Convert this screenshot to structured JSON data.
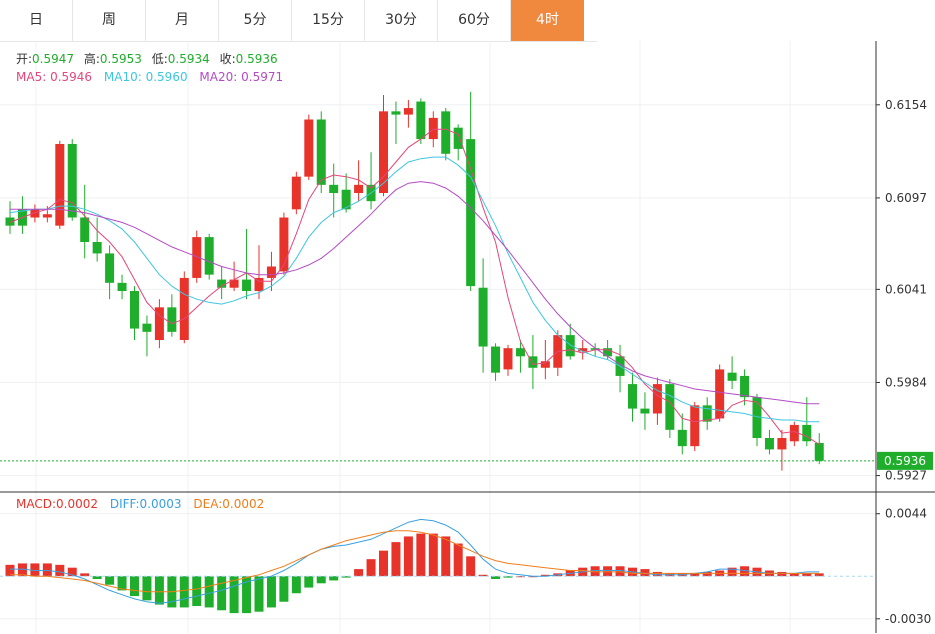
{
  "tabs": [
    {
      "label": "日",
      "active": false
    },
    {
      "label": "周",
      "active": false
    },
    {
      "label": "月",
      "active": false
    },
    {
      "label": "5分",
      "active": false
    },
    {
      "label": "15分",
      "active": false
    },
    {
      "label": "30分",
      "active": false
    },
    {
      "label": "60分",
      "active": false
    },
    {
      "label": "4时",
      "active": true
    }
  ],
  "info": {
    "open_label": "开:",
    "open": "0.5947",
    "high_label": "高:",
    "high": "0.5953",
    "low_label": "低:",
    "low": "0.5934",
    "close_label": "收:",
    "close": "0.5936",
    "ma5_label": "MA5: ",
    "ma5": "0.5946",
    "ma10_label": "MA10: ",
    "ma10": "0.5960",
    "ma20_label": "MA20: ",
    "ma20": "0.5971"
  },
  "macd_info": {
    "macd_label": "MACD:",
    "macd": "0.0002",
    "diff_label": "DIFF:",
    "diff": "0.0003",
    "dea_label": "DEA:",
    "dea": "0.0002"
  },
  "colors": {
    "up": "#e8332b",
    "down": "#1fae2b",
    "ma5": "#e4477a",
    "ma10": "#3ec6e0",
    "ma20": "#b44bc6",
    "diff": "#3aa0e0",
    "dea": "#f07d1a",
    "last_price_bg": "#1fae2b",
    "tab_active": "#f0883e"
  },
  "chart_data": {
    "type": "candlestick",
    "price_axis": {
      "ticks": [
        0.6154,
        0.6097,
        0.6041,
        0.5984,
        0.5927
      ],
      "range": [
        0.592,
        0.619
      ]
    },
    "last_price": "0.5936",
    "candles": [
      [
        0.6085,
        0.608,
        0.6095,
        0.6075
      ],
      [
        0.609,
        0.608,
        0.6098,
        0.6075
      ],
      [
        0.6085,
        0.609,
        0.6093,
        0.6082
      ],
      [
        0.6085,
        0.6087,
        0.6092,
        0.6082
      ],
      [
        0.608,
        0.613,
        0.6132,
        0.6078
      ],
      [
        0.613,
        0.6085,
        0.6133,
        0.6083
      ],
      [
        0.6085,
        0.607,
        0.6105,
        0.606
      ],
      [
        0.607,
        0.6063,
        0.6085,
        0.6058
      ],
      [
        0.6063,
        0.6045,
        0.6068,
        0.6035
      ],
      [
        0.6045,
        0.604,
        0.605,
        0.6035
      ],
      [
        0.604,
        0.6017,
        0.6043,
        0.601
      ],
      [
        0.602,
        0.6015,
        0.6025,
        0.6
      ],
      [
        0.601,
        0.603,
        0.6035,
        0.6005
      ],
      [
        0.603,
        0.6015,
        0.6038,
        0.6012
      ],
      [
        0.601,
        0.6048,
        0.6052,
        0.6008
      ],
      [
        0.6048,
        0.6073,
        0.6077,
        0.6045
      ],
      [
        0.6073,
        0.605,
        0.6075,
        0.6047
      ],
      [
        0.6047,
        0.6042,
        0.6055,
        0.6035
      ],
      [
        0.6042,
        0.6047,
        0.6058,
        0.604
      ],
      [
        0.6047,
        0.604,
        0.6078,
        0.6035
      ],
      [
        0.604,
        0.6048,
        0.6068,
        0.6035
      ],
      [
        0.6048,
        0.6055,
        0.6064,
        0.604
      ],
      [
        0.6052,
        0.6085,
        0.6088,
        0.605
      ],
      [
        0.609,
        0.611,
        0.6113,
        0.6087
      ],
      [
        0.611,
        0.6145,
        0.6148,
        0.6108
      ],
      [
        0.6145,
        0.6105,
        0.615,
        0.61
      ],
      [
        0.6105,
        0.61,
        0.6118,
        0.6085
      ],
      [
        0.6102,
        0.609,
        0.6112,
        0.6088
      ],
      [
        0.61,
        0.6105,
        0.612,
        0.6095
      ],
      [
        0.6105,
        0.6095,
        0.6125,
        0.609
      ],
      [
        0.61,
        0.615,
        0.616,
        0.6098
      ],
      [
        0.615,
        0.6148,
        0.6156,
        0.613
      ],
      [
        0.6148,
        0.6152,
        0.6157,
        0.614
      ],
      [
        0.6156,
        0.6133,
        0.6158,
        0.613
      ],
      [
        0.6133,
        0.6146,
        0.615,
        0.6128
      ],
      [
        0.615,
        0.6124,
        0.6152,
        0.612
      ],
      [
        0.614,
        0.6127,
        0.6142,
        0.612
      ],
      [
        0.6133,
        0.6043,
        0.6162,
        0.604
      ],
      [
        0.6042,
        0.6006,
        0.606,
        0.599
      ],
      [
        0.6006,
        0.599,
        0.6008,
        0.5985
      ],
      [
        0.5992,
        0.6005,
        0.6007,
        0.5988
      ],
      [
        0.6005,
        0.6,
        0.601,
        0.599
      ],
      [
        0.6,
        0.5993,
        0.6013,
        0.598
      ],
      [
        0.5993,
        0.5997,
        0.601,
        0.5986
      ],
      [
        0.5993,
        0.6013,
        0.6016,
        0.5988
      ],
      [
        0.6013,
        0.6,
        0.602,
        0.5998
      ],
      [
        0.6003,
        0.6005,
        0.601,
        0.5998
      ],
      [
        0.6005,
        0.6004,
        0.6008,
        0.6
      ],
      [
        0.6005,
        0.6,
        0.601,
        0.5998
      ],
      [
        0.6,
        0.5988,
        0.6007,
        0.5978
      ],
      [
        0.5983,
        0.5968,
        0.599,
        0.596
      ],
      [
        0.5968,
        0.5965,
        0.5978,
        0.5955
      ],
      [
        0.5965,
        0.5983,
        0.5987,
        0.5958
      ],
      [
        0.5983,
        0.5955,
        0.5986,
        0.595
      ],
      [
        0.5955,
        0.5945,
        0.5965,
        0.594
      ],
      [
        0.5945,
        0.597,
        0.5972,
        0.5942
      ],
      [
        0.597,
        0.596,
        0.5975,
        0.5955
      ],
      [
        0.5962,
        0.5992,
        0.5995,
        0.596
      ],
      [
        0.599,
        0.5985,
        0.6,
        0.598
      ],
      [
        0.5988,
        0.5975,
        0.5992,
        0.597
      ],
      [
        0.5975,
        0.595,
        0.5977,
        0.5945
      ],
      [
        0.595,
        0.5943,
        0.5955,
        0.594
      ],
      [
        0.5943,
        0.595,
        0.5955,
        0.593
      ],
      [
        0.5948,
        0.5958,
        0.596,
        0.5945
      ],
      [
        0.5958,
        0.5948,
        0.5975,
        0.5945
      ],
      [
        0.5947,
        0.5936,
        0.5953,
        0.5934
      ]
    ],
    "ma5": [
      0.6082,
      0.6085,
      0.6088,
      0.609,
      0.6096,
      0.6094,
      0.6086,
      0.6077,
      0.607,
      0.6061,
      0.6047,
      0.6033,
      0.6025,
      0.602,
      0.6023,
      0.603,
      0.6037,
      0.6043,
      0.6047,
      0.6051,
      0.6046,
      0.6046,
      0.6056,
      0.6075,
      0.6096,
      0.6108,
      0.6111,
      0.611,
      0.6108,
      0.6103,
      0.611,
      0.6119,
      0.6128,
      0.6133,
      0.6139,
      0.6139,
      0.6136,
      0.6115,
      0.6091,
      0.607,
      0.6036,
      0.6009,
      0.5995,
      0.5996,
      0.6003,
      0.6004,
      0.6002,
      0.6004,
      0.6004,
      0.6001,
      0.5993,
      0.5983,
      0.5976,
      0.5972,
      0.5962,
      0.596,
      0.5961,
      0.5962,
      0.597,
      0.5973,
      0.5972,
      0.5963,
      0.5953,
      0.5954,
      0.5951,
      0.5946
    ],
    "ma10": [
      0.6088,
      0.6089,
      0.609,
      0.609,
      0.6092,
      0.6092,
      0.609,
      0.6087,
      0.6083,
      0.6078,
      0.607,
      0.606,
      0.605,
      0.6043,
      0.6038,
      0.6035,
      0.6033,
      0.6032,
      0.6034,
      0.6037,
      0.6039,
      0.6043,
      0.6049,
      0.606,
      0.6073,
      0.6082,
      0.6088,
      0.6091,
      0.6095,
      0.61,
      0.6106,
      0.6113,
      0.6119,
      0.6121,
      0.6122,
      0.6122,
      0.6117,
      0.611,
      0.6095,
      0.608,
      0.6063,
      0.6048,
      0.6033,
      0.6022,
      0.6013,
      0.6007,
      0.6003,
      0.6,
      0.5998,
      0.5994,
      0.5989,
      0.5984,
      0.5979,
      0.5976,
      0.5972,
      0.5969,
      0.5968,
      0.5967,
      0.5966,
      0.5965,
      0.5963,
      0.5962,
      0.5961,
      0.5961,
      0.596,
      0.596
    ],
    "ma20": [
      0.609,
      0.609,
      0.609,
      0.609,
      0.609,
      0.6089,
      0.6088,
      0.6086,
      0.6084,
      0.6082,
      0.6079,
      0.6075,
      0.6071,
      0.6067,
      0.6064,
      0.6061,
      0.6058,
      0.6055,
      0.6053,
      0.6051,
      0.605,
      0.605,
      0.6051,
      0.6053,
      0.6056,
      0.606,
      0.6066,
      0.6073,
      0.608,
      0.6087,
      0.6095,
      0.6102,
      0.6106,
      0.6107,
      0.6106,
      0.6103,
      0.6098,
      0.6091,
      0.6083,
      0.6074,
      0.6065,
      0.6055,
      0.6045,
      0.6035,
      0.6026,
      0.6018,
      0.6011,
      0.6005,
      0.6,
      0.5995,
      0.5991,
      0.5988,
      0.5986,
      0.5984,
      0.5982,
      0.598,
      0.5979,
      0.5978,
      0.5977,
      0.5976,
      0.5975,
      0.5974,
      0.5973,
      0.5972,
      0.5971,
      0.5971
    ],
    "macd_axis": {
      "ticks": [
        0.0044,
        -0.003
      ],
      "range": [
        -0.004,
        0.006
      ]
    },
    "macd_hist": [
      0.0008,
      0.0009,
      0.0009,
      0.0009,
      0.0008,
      0.0006,
      0.0002,
      -0.0002,
      -0.0006,
      -0.001,
      -0.0014,
      -0.0017,
      -0.002,
      -0.0022,
      -0.0022,
      -0.0021,
      -0.0022,
      -0.0024,
      -0.0026,
      -0.0026,
      -0.0025,
      -0.0022,
      -0.0018,
      -0.0012,
      -0.0008,
      -0.0005,
      -0.0003,
      -0.0001,
      0.0005,
      0.0012,
      0.0018,
      0.0024,
      0.0028,
      0.003,
      0.003,
      0.0028,
      0.0023,
      0.0014,
      0.0001,
      -0.0002,
      -0.0001,
      0.0,
      0.0,
      0.0001,
      0.0002,
      0.0004,
      0.0006,
      0.0007,
      0.0007,
      0.0007,
      0.0006,
      0.0005,
      0.0003,
      0.0002,
      0.0002,
      0.0002,
      0.0003,
      0.0004,
      0.0006,
      0.0007,
      0.0006,
      0.0004,
      0.0003,
      0.0002,
      0.0002,
      0.0002
    ],
    "diff": [
      0.0005,
      0.0005,
      0.0004,
      0.0004,
      0.0003,
      0.0001,
      -0.0002,
      -0.0006,
      -0.001,
      -0.0013,
      -0.0016,
      -0.0018,
      -0.0019,
      -0.0018,
      -0.0016,
      -0.0014,
      -0.0012,
      -0.001,
      -0.0007,
      -0.0004,
      -0.0002,
      0.0,
      0.0004,
      0.0009,
      0.0015,
      0.0019,
      0.0021,
      0.0022,
      0.0024,
      0.0026,
      0.003,
      0.0034,
      0.0038,
      0.004,
      0.0039,
      0.0036,
      0.0031,
      0.0022,
      0.0012,
      0.0005,
      0.0002,
      0.0001,
      0.0,
      0.0,
      0.0001,
      0.0002,
      0.0003,
      0.0004,
      0.0004,
      0.0004,
      0.0003,
      0.0002,
      0.0001,
      0.0001,
      0.0001,
      0.0002,
      0.0003,
      0.0005,
      0.0005,
      0.0004,
      0.0003,
      0.0002,
      0.0002,
      0.0002,
      0.0003,
      0.0003
    ],
    "dea": [
      0.0001,
      0.0001,
      0.0,
      0.0,
      -0.0001,
      -0.0002,
      -0.0003,
      -0.0005,
      -0.0007,
      -0.0009,
      -0.001,
      -0.0011,
      -0.0011,
      -0.0011,
      -0.001,
      -0.0009,
      -0.0007,
      -0.0005,
      -0.0003,
      -0.0001,
      0.0001,
      0.0004,
      0.0007,
      0.0011,
      0.0015,
      0.0019,
      0.0022,
      0.0025,
      0.0027,
      0.0029,
      0.0031,
      0.0032,
      0.0032,
      0.0031,
      0.0029,
      0.0026,
      0.0022,
      0.0018,
      0.0014,
      0.0011,
      0.0009,
      0.0008,
      0.0007,
      0.0006,
      0.0005,
      0.0004,
      0.0004,
      0.0003,
      0.0003,
      0.0003,
      0.0002,
      0.0002,
      0.0002,
      0.0002,
      0.0002,
      0.0002,
      0.0002,
      0.0002,
      0.0002,
      0.0002,
      0.0002,
      0.0002,
      0.0002,
      0.0002,
      0.0002,
      0.0002
    ]
  }
}
